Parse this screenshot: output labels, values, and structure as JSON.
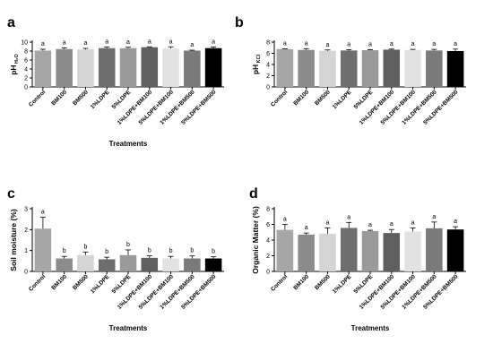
{
  "bar_colors": [
    "#a6a6a6",
    "#8c8c8c",
    "#d4d4d4",
    "#6e6e6e",
    "#9a9a9a",
    "#5f5f5f",
    "#e2e2e2",
    "#7a7a7a",
    "#000000"
  ],
  "chart_data": [
    {
      "type": "bar",
      "panel_label": "a",
      "categories": [
        "Control",
        "BM100",
        "BM500",
        "1%LDPE",
        "5%LDPE",
        "1%LDPE+BM100",
        "5%LDPE+BM100",
        "1%LDPE+BM500",
        "5%LDPE+BM500"
      ],
      "values": [
        8.1,
        8.45,
        8.35,
        8.65,
        8.65,
        8.85,
        8.55,
        8.1,
        8.65
      ],
      "errors": [
        0.3,
        0.25,
        0.25,
        0.25,
        0.2,
        0.1,
        0.4,
        0.1,
        0.25
      ],
      "significance_letters": [
        "a",
        "a",
        "a",
        "a",
        "a",
        "a",
        "a",
        "a",
        "a"
      ],
      "ylabel": "pH",
      "ylabel_sub": "H₂O",
      "xlabel": "Treatments",
      "ylim": [
        0,
        10
      ],
      "yticks": [
        0,
        2,
        4,
        6,
        8,
        10
      ]
    },
    {
      "type": "bar",
      "panel_label": "b",
      "categories": [
        "Control",
        "BM100",
        "BM500",
        "1%LDPE",
        "5%LDPE",
        "1%LDPE+BM100",
        "5%LDPE+BM100",
        "1%LDPE+BM500",
        "5%LDPE+BM500"
      ],
      "values": [
        6.75,
        6.6,
        6.45,
        6.5,
        6.55,
        6.65,
        6.6,
        6.5,
        6.4
      ],
      "errors": [
        0.05,
        0.2,
        0.15,
        0.15,
        0.1,
        0.1,
        0.1,
        0.2,
        0.35
      ],
      "significance_letters": [
        "a",
        "a",
        "a",
        "a",
        "a",
        "a",
        "a",
        "a",
        "a"
      ],
      "ylabel": "pH",
      "ylabel_sub": "KCl",
      "xlabel": "",
      "ylim": [
        0,
        8
      ],
      "yticks": [
        0,
        2,
        4,
        6,
        8
      ]
    },
    {
      "type": "bar",
      "panel_label": "c",
      "categories": [
        "Control",
        "BM100",
        "BM500",
        "1%LDPE",
        "5%LDPE",
        "1%LDPE+BM100",
        "5%LDPE+BM100",
        "1%LDPE+BM500",
        "5%LDPE+BM500"
      ],
      "values": [
        2.05,
        0.62,
        0.78,
        0.58,
        0.78,
        0.65,
        0.62,
        0.62,
        0.62
      ],
      "errors": [
        0.55,
        0.1,
        0.15,
        0.1,
        0.25,
        0.1,
        0.1,
        0.12,
        0.08
      ],
      "significance_letters": [
        "a",
        "b",
        "b",
        "b",
        "b",
        "b",
        "b",
        "b",
        "b"
      ],
      "ylabel": "Soil moisture (%)",
      "ylabel_sub": "",
      "xlabel": "Treatments",
      "ylim": [
        0,
        3
      ],
      "yticks": [
        0,
        1,
        2,
        3
      ]
    },
    {
      "type": "bar",
      "panel_label": "d",
      "categories": [
        "Control",
        "BM100",
        "BM500",
        "1%LDPE",
        "5%LDPE",
        "1%LDPE+BM100",
        "5%LDPE+BM100",
        "1%LDPE+BM500",
        "5%LDPE+BM500"
      ],
      "values": [
        5.3,
        4.7,
        4.8,
        5.55,
        5.15,
        4.9,
        5.1,
        5.5,
        5.35
      ],
      "errors": [
        0.7,
        0.2,
        0.75,
        0.7,
        0.1,
        0.45,
        0.45,
        0.8,
        0.35
      ],
      "significance_letters": [
        "a",
        "a",
        "a",
        "a",
        "a",
        "a",
        "a",
        "a",
        "a"
      ],
      "ylabel": "Organic Matter (%)",
      "ylabel_sub": "",
      "xlabel": "Treatments",
      "ylim": [
        0,
        8
      ],
      "yticks": [
        0,
        2,
        4,
        6,
        8
      ]
    }
  ]
}
